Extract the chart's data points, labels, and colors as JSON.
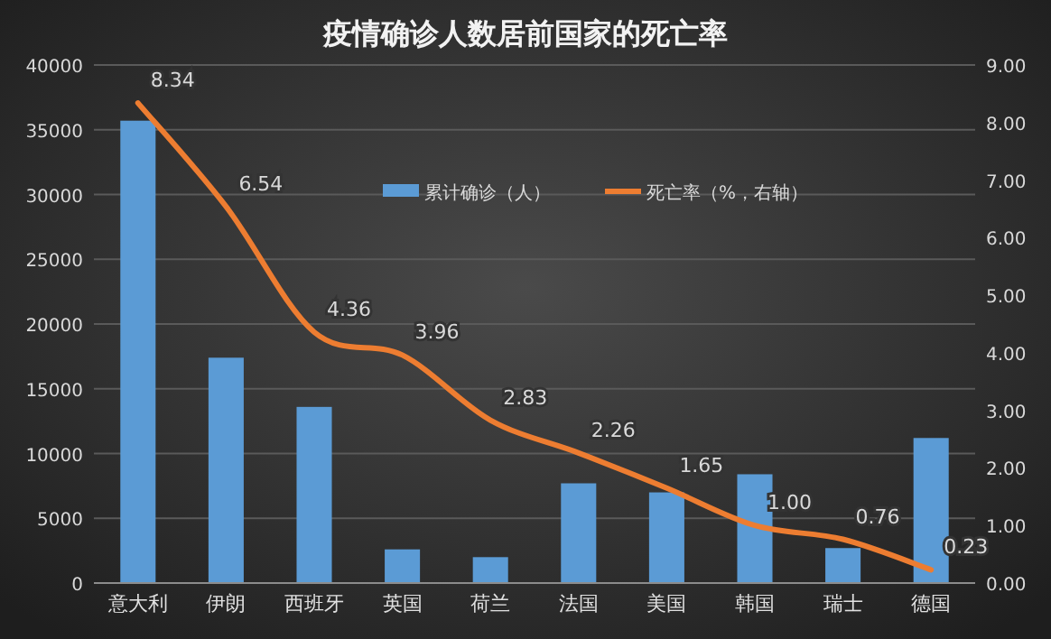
{
  "chart_data": {
    "type": "bar",
    "title": "疫情确诊人数居前国家的死亡率",
    "categories": [
      "意大利",
      "伊朗",
      "西班牙",
      "英国",
      "荷兰",
      "法国",
      "美国",
      "韩国",
      "瑞士",
      "德国"
    ],
    "series": [
      {
        "name": "累计确诊（人）",
        "color": "#5b9bd5",
        "values": [
          35700,
          17400,
          13600,
          2600,
          2000,
          7700,
          7000,
          8400,
          2700,
          11200
        ]
      },
      {
        "name": "死亡率（%，右轴）",
        "type": "line",
        "axis": "y2",
        "color": "#ed7d31",
        "values": [
          8.34,
          6.54,
          4.36,
          3.96,
          2.83,
          2.26,
          1.65,
          1.0,
          0.76,
          0.23
        ],
        "value_labels": [
          "8.34",
          "6.54",
          "4.36",
          "3.96",
          "2.83",
          "2.26",
          "1.65",
          "1.00",
          "0.76",
          "0.23"
        ]
      }
    ],
    "ylim": [
      0,
      40000
    ],
    "yticks": [
      0,
      5000,
      10000,
      15000,
      20000,
      25000,
      30000,
      35000,
      40000
    ],
    "y2lim": [
      0,
      9
    ],
    "y2ticks": [
      {
        "value": 0,
        "label": "0.00"
      },
      {
        "value": 1,
        "label": "1.00"
      },
      {
        "value": 2,
        "label": "2.00"
      },
      {
        "value": 3,
        "label": "3.00"
      },
      {
        "value": 4,
        "label": "4.00"
      },
      {
        "value": 5,
        "label": "5.00"
      },
      {
        "value": 6,
        "label": "6.00"
      },
      {
        "value": 7,
        "label": "7.00"
      },
      {
        "value": 8,
        "label": "8.00"
      },
      {
        "value": 9,
        "label": "9.00"
      }
    ],
    "grid": "y",
    "legend": "top"
  }
}
